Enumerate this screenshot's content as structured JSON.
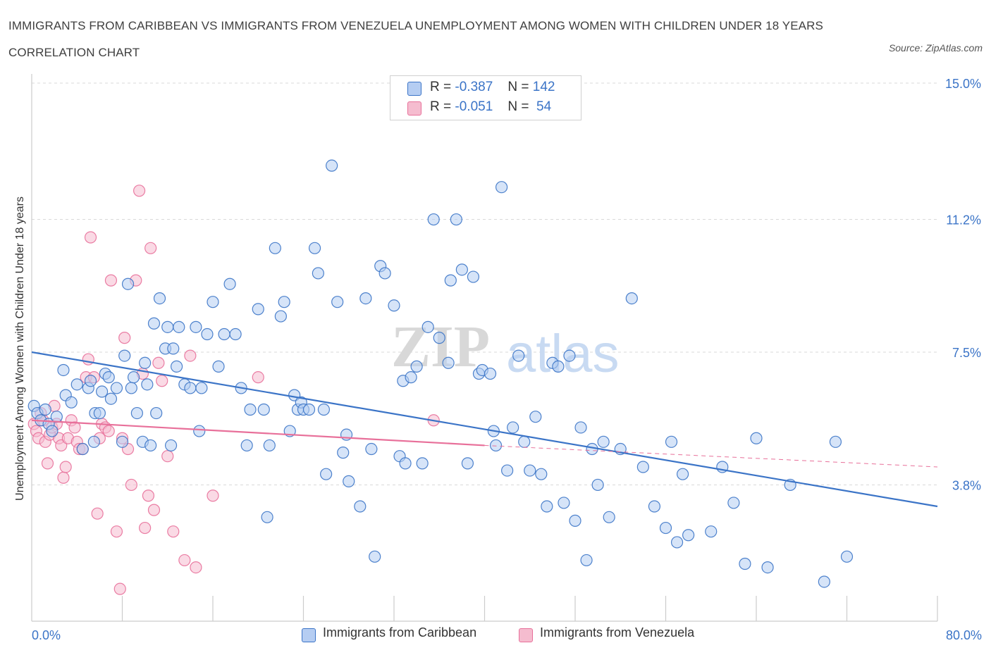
{
  "title": "IMMIGRANTS FROM CARIBBEAN VS IMMIGRANTS FROM VENEZUELA UNEMPLOYMENT AMONG WOMEN WITH CHILDREN UNDER 18 YEARS CORRELATION CHART",
  "source": "Source: ZipAtlas.com",
  "watermark": {
    "zip": "ZIP",
    "atlas": "atlas"
  },
  "colors": {
    "blue": "#3b74c7",
    "blue_fill": "#b5cdf2",
    "pink": "#e8709a",
    "pink_fill": "#f5bccf",
    "grid": "#d9d9d9",
    "tick_label": "#3b74c7"
  },
  "stats": [
    {
      "r_label": "R =",
      "r_value": "-0.387",
      "n_label": "N =",
      "n_value": "142"
    },
    {
      "r_label": "R =",
      "r_value": "-0.051",
      "n_label": "N =",
      "n_value": " 54"
    }
  ],
  "legend": [
    "Immigrants from Caribbean",
    "Immigrants from Venezuela"
  ],
  "chart_data": {
    "type": "scatter",
    "xlabel": "",
    "ylabel": "Unemployment Among Women with Children Under 18 years",
    "xlim": [
      0,
      80
    ],
    "ylim": [
      0.0,
      15.0
    ],
    "x_tick_labels": [
      "0.0%",
      "80.0%"
    ],
    "y_ticks": [
      3.8,
      7.5,
      11.2,
      15.0
    ],
    "y_tick_labels": [
      "3.8%",
      "7.5%",
      "11.2%",
      "15.0%"
    ],
    "grid": true,
    "series": [
      {
        "name": "Immigrants from Caribbean",
        "trend": {
          "x": [
            0,
            80
          ],
          "y": [
            7.5,
            3.2
          ]
        },
        "points": [
          [
            0.2,
            6.0
          ],
          [
            0.5,
            5.8
          ],
          [
            0.8,
            5.6
          ],
          [
            1.2,
            5.9
          ],
          [
            1.5,
            5.5
          ],
          [
            1.8,
            5.3
          ],
          [
            2.2,
            5.7
          ],
          [
            2.8,
            7.0
          ],
          [
            3.0,
            6.3
          ],
          [
            3.5,
            6.1
          ],
          [
            4.0,
            6.6
          ],
          [
            4.5,
            4.8
          ],
          [
            5.0,
            6.5
          ],
          [
            5.2,
            6.7
          ],
          [
            5.5,
            5.0
          ],
          [
            5.6,
            5.8
          ],
          [
            6.0,
            5.8
          ],
          [
            6.2,
            6.4
          ],
          [
            6.5,
            6.9
          ],
          [
            6.8,
            6.8
          ],
          [
            7.0,
            6.2
          ],
          [
            7.5,
            6.5
          ],
          [
            8.0,
            5.0
          ],
          [
            8.2,
            7.4
          ],
          [
            8.5,
            9.4
          ],
          [
            8.8,
            6.5
          ],
          [
            9.0,
            6.8
          ],
          [
            9.3,
            5.8
          ],
          [
            9.8,
            5.0
          ],
          [
            10.0,
            7.2
          ],
          [
            10.2,
            6.6
          ],
          [
            10.5,
            4.9
          ],
          [
            10.8,
            8.3
          ],
          [
            11.0,
            5.8
          ],
          [
            11.3,
            9.0
          ],
          [
            11.8,
            7.6
          ],
          [
            12.0,
            8.2
          ],
          [
            12.3,
            4.9
          ],
          [
            12.5,
            7.6
          ],
          [
            12.8,
            7.1
          ],
          [
            13.0,
            8.2
          ],
          [
            13.5,
            6.6
          ],
          [
            14.0,
            6.5
          ],
          [
            14.5,
            8.2
          ],
          [
            14.8,
            5.3
          ],
          [
            15.0,
            6.5
          ],
          [
            15.5,
            8.0
          ],
          [
            16.0,
            8.9
          ],
          [
            16.5,
            7.1
          ],
          [
            17.0,
            8.0
          ],
          [
            17.5,
            9.4
          ],
          [
            18.0,
            8.0
          ],
          [
            18.5,
            6.5
          ],
          [
            19.0,
            4.9
          ],
          [
            19.3,
            5.9
          ],
          [
            20.0,
            8.7
          ],
          [
            20.5,
            5.9
          ],
          [
            20.8,
            2.9
          ],
          [
            21.0,
            4.9
          ],
          [
            21.5,
            10.4
          ],
          [
            22.0,
            8.5
          ],
          [
            22.3,
            8.9
          ],
          [
            22.8,
            5.3
          ],
          [
            23.2,
            6.3
          ],
          [
            23.5,
            5.9
          ],
          [
            23.8,
            6.1
          ],
          [
            24.0,
            5.9
          ],
          [
            24.5,
            5.9
          ],
          [
            25.0,
            10.4
          ],
          [
            25.3,
            9.7
          ],
          [
            25.8,
            5.9
          ],
          [
            26.0,
            4.1
          ],
          [
            26.5,
            12.7
          ],
          [
            27.0,
            8.9
          ],
          [
            27.5,
            4.7
          ],
          [
            27.8,
            5.2
          ],
          [
            28.0,
            3.9
          ],
          [
            29.0,
            3.2
          ],
          [
            29.5,
            9.0
          ],
          [
            30.0,
            4.8
          ],
          [
            30.3,
            1.8
          ],
          [
            30.8,
            9.9
          ],
          [
            31.2,
            9.7
          ],
          [
            32.0,
            8.8
          ],
          [
            32.5,
            4.6
          ],
          [
            32.8,
            6.7
          ],
          [
            33.0,
            4.4
          ],
          [
            33.5,
            6.8
          ],
          [
            34.0,
            7.1
          ],
          [
            34.5,
            4.4
          ],
          [
            35.0,
            8.2
          ],
          [
            35.5,
            11.2
          ],
          [
            36.0,
            7.9
          ],
          [
            36.8,
            7.2
          ],
          [
            37.0,
            9.5
          ],
          [
            37.5,
            11.2
          ],
          [
            38.0,
            9.8
          ],
          [
            38.5,
            4.4
          ],
          [
            39.0,
            9.6
          ],
          [
            39.5,
            6.9
          ],
          [
            39.8,
            7.0
          ],
          [
            40.5,
            6.9
          ],
          [
            40.8,
            5.3
          ],
          [
            41.0,
            4.9
          ],
          [
            41.5,
            12.1
          ],
          [
            42.0,
            4.2
          ],
          [
            42.5,
            5.4
          ],
          [
            43.0,
            7.4
          ],
          [
            43.5,
            5.0
          ],
          [
            44.0,
            4.2
          ],
          [
            44.5,
            5.7
          ],
          [
            45.0,
            4.1
          ],
          [
            45.5,
            3.2
          ],
          [
            46.0,
            7.2
          ],
          [
            46.5,
            7.1
          ],
          [
            47.0,
            3.3
          ],
          [
            47.5,
            7.4
          ],
          [
            48.0,
            2.8
          ],
          [
            48.5,
            5.4
          ],
          [
            49.0,
            1.7
          ],
          [
            49.5,
            4.8
          ],
          [
            50.0,
            3.8
          ],
          [
            50.5,
            5.0
          ],
          [
            51.0,
            2.9
          ],
          [
            52.0,
            4.8
          ],
          [
            53.0,
            9.0
          ],
          [
            54.0,
            4.3
          ],
          [
            55.0,
            3.2
          ],
          [
            56.0,
            2.6
          ],
          [
            56.5,
            5.0
          ],
          [
            57.0,
            2.2
          ],
          [
            57.5,
            4.1
          ],
          [
            58.0,
            2.4
          ],
          [
            60.0,
            2.5
          ],
          [
            61.0,
            4.3
          ],
          [
            62.0,
            3.3
          ],
          [
            63.0,
            1.6
          ],
          [
            64.0,
            5.1
          ],
          [
            65.0,
            1.5
          ],
          [
            67.0,
            3.8
          ],
          [
            70.0,
            1.1
          ],
          [
            71.0,
            5.0
          ],
          [
            72.0,
            1.8
          ]
        ]
      },
      {
        "name": "Immigrants from Venezuela",
        "trend": {
          "x": [
            0,
            40
          ],
          "y": [
            5.6,
            4.9
          ]
        },
        "trend_dashed": {
          "x": [
            40,
            80
          ],
          "y": [
            4.9,
            4.3
          ]
        },
        "points": [
          [
            0.2,
            5.5
          ],
          [
            0.4,
            5.3
          ],
          [
            0.6,
            5.1
          ],
          [
            0.8,
            5.8
          ],
          [
            1.0,
            5.6
          ],
          [
            1.2,
            5.0
          ],
          [
            1.4,
            4.4
          ],
          [
            1.6,
            5.2
          ],
          [
            1.8,
            5.4
          ],
          [
            2.0,
            6.0
          ],
          [
            2.2,
            5.5
          ],
          [
            2.4,
            5.1
          ],
          [
            2.6,
            4.9
          ],
          [
            2.8,
            4.0
          ],
          [
            3.0,
            4.3
          ],
          [
            3.2,
            5.1
          ],
          [
            3.5,
            5.6
          ],
          [
            3.8,
            5.4
          ],
          [
            4.0,
            5.0
          ],
          [
            4.2,
            4.8
          ],
          [
            4.5,
            4.8
          ],
          [
            4.8,
            6.8
          ],
          [
            5.0,
            7.3
          ],
          [
            5.2,
            10.7
          ],
          [
            5.5,
            6.8
          ],
          [
            5.8,
            3.0
          ],
          [
            6.0,
            5.1
          ],
          [
            6.2,
            5.5
          ],
          [
            6.5,
            5.4
          ],
          [
            6.8,
            5.3
          ],
          [
            7.0,
            9.5
          ],
          [
            7.5,
            2.5
          ],
          [
            7.8,
            0.9
          ],
          [
            8.0,
            5.1
          ],
          [
            8.2,
            7.9
          ],
          [
            8.5,
            4.8
          ],
          [
            8.8,
            3.8
          ],
          [
            9.2,
            9.5
          ],
          [
            9.5,
            12.0
          ],
          [
            9.8,
            6.9
          ],
          [
            10.0,
            2.6
          ],
          [
            10.3,
            3.5
          ],
          [
            10.5,
            10.4
          ],
          [
            10.8,
            3.1
          ],
          [
            11.2,
            7.2
          ],
          [
            11.5,
            6.7
          ],
          [
            12.0,
            4.6
          ],
          [
            12.5,
            2.5
          ],
          [
            13.5,
            1.7
          ],
          [
            14.0,
            7.4
          ],
          [
            14.5,
            1.5
          ],
          [
            16.0,
            3.5
          ],
          [
            20.0,
            6.8
          ],
          [
            35.5,
            5.6
          ]
        ]
      }
    ]
  }
}
